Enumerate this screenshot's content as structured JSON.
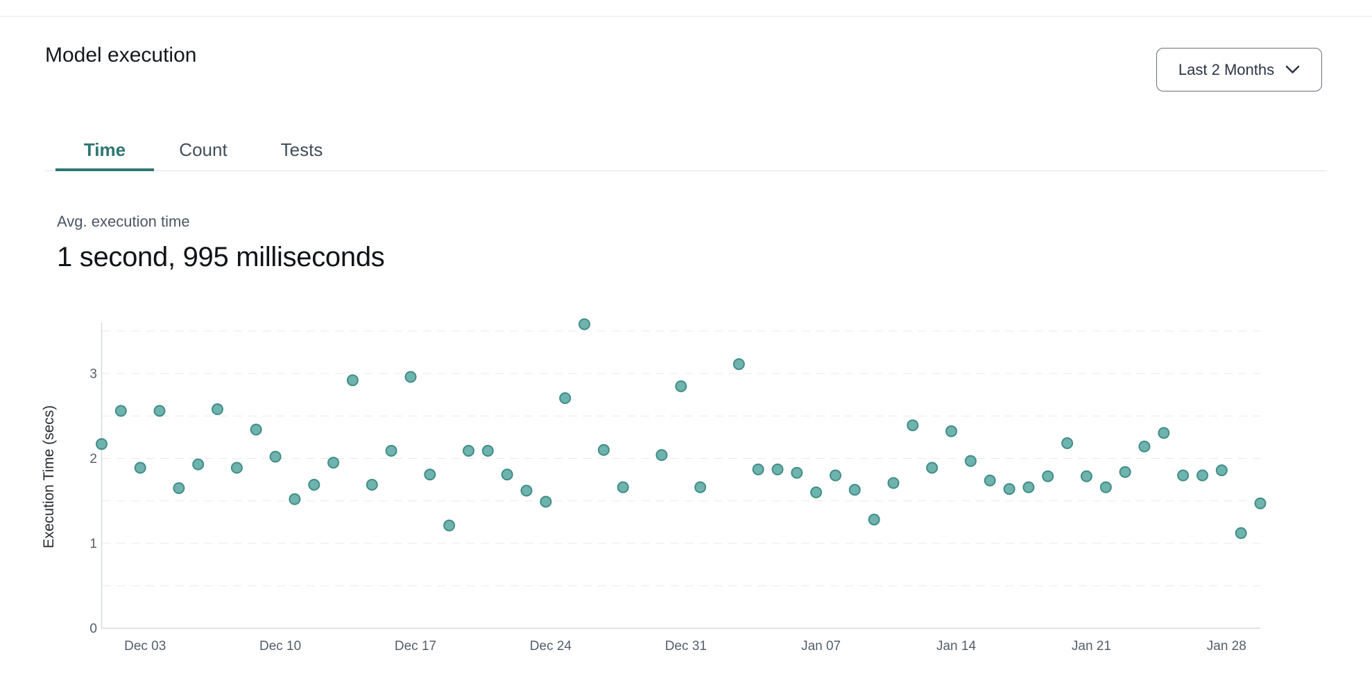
{
  "colors": {
    "accent": "#2d7672",
    "marker": "#6fb3ae",
    "marker_stroke": "#408d87",
    "grid": "#e7e8eb"
  },
  "header": {
    "title": "Model execution",
    "range_selector": {
      "value": "Last 2 Months",
      "icon": "chevron-down"
    }
  },
  "tabs": [
    {
      "label": "Time",
      "active": true
    },
    {
      "label": "Count",
      "active": false
    },
    {
      "label": "Tests",
      "active": false
    }
  ],
  "summary": {
    "label": "Avg. execution time",
    "value": "1 second, 995 milliseconds"
  },
  "chart_data": {
    "type": "scatter",
    "title": "",
    "xlabel": "",
    "ylabel": "Execution Time (secs)",
    "ylim": [
      0,
      3.7
    ],
    "y_ticks": [
      0,
      1,
      2,
      3
    ],
    "x_ticks": [
      "Dec 03",
      "Dec 10",
      "Dec 17",
      "Dec 24",
      "Dec 31",
      "Jan 07",
      "Jan 14",
      "Jan 21",
      "Jan 28"
    ],
    "grid": "horizontal dashed every 0.5",
    "legend": "none",
    "points": [
      {
        "date": "Dec 01",
        "value": 2.17
      },
      {
        "date": "Dec 02",
        "value": 2.56
      },
      {
        "date": "Dec 03",
        "value": 1.89
      },
      {
        "date": "Dec 04",
        "value": 2.56
      },
      {
        "date": "Dec 05",
        "value": 1.65
      },
      {
        "date": "Dec 06",
        "value": 1.93
      },
      {
        "date": "Dec 07",
        "value": 2.58
      },
      {
        "date": "Dec 08",
        "value": 1.89
      },
      {
        "date": "Dec 09",
        "value": 2.34
      },
      {
        "date": "Dec 10",
        "value": 2.02
      },
      {
        "date": "Dec 11",
        "value": 1.52
      },
      {
        "date": "Dec 12",
        "value": 1.69
      },
      {
        "date": "Dec 13",
        "value": 1.95
      },
      {
        "date": "Dec 14",
        "value": 2.92
      },
      {
        "date": "Dec 15",
        "value": 1.69
      },
      {
        "date": "Dec 16",
        "value": 2.09
      },
      {
        "date": "Dec 17",
        "value": 2.96
      },
      {
        "date": "Dec 18",
        "value": 1.81
      },
      {
        "date": "Dec 19",
        "value": 1.21
      },
      {
        "date": "Dec 20",
        "value": 2.09
      },
      {
        "date": "Dec 21",
        "value": 2.09
      },
      {
        "date": "Dec 22",
        "value": 1.81
      },
      {
        "date": "Dec 23",
        "value": 1.62
      },
      {
        "date": "Dec 24",
        "value": 1.49
      },
      {
        "date": "Dec 25",
        "value": 2.71
      },
      {
        "date": "Dec 26",
        "value": 3.58
      },
      {
        "date": "Dec 27",
        "value": 2.1
      },
      {
        "date": "Dec 28",
        "value": 1.66
      },
      {
        "date": "Dec 30",
        "value": 2.04
      },
      {
        "date": "Dec 31",
        "value": 2.85
      },
      {
        "date": "Jan 01",
        "value": 1.66
      },
      {
        "date": "Jan 03",
        "value": 3.11
      },
      {
        "date": "Jan 04",
        "value": 1.87
      },
      {
        "date": "Jan 05",
        "value": 1.87
      },
      {
        "date": "Jan 06",
        "value": 1.83
      },
      {
        "date": "Jan 07",
        "value": 1.6
      },
      {
        "date": "Jan 08",
        "value": 1.8
      },
      {
        "date": "Jan 09",
        "value": 1.63
      },
      {
        "date": "Jan 10",
        "value": 1.28
      },
      {
        "date": "Jan 11",
        "value": 1.71
      },
      {
        "date": "Jan 12",
        "value": 2.39
      },
      {
        "date": "Jan 13",
        "value": 1.89
      },
      {
        "date": "Jan 14",
        "value": 2.32
      },
      {
        "date": "Jan 15",
        "value": 1.97
      },
      {
        "date": "Jan 16",
        "value": 1.74
      },
      {
        "date": "Jan 17",
        "value": 1.64
      },
      {
        "date": "Jan 18",
        "value": 1.66
      },
      {
        "date": "Jan 19",
        "value": 1.79
      },
      {
        "date": "Jan 20",
        "value": 2.18
      },
      {
        "date": "Jan 21",
        "value": 1.79
      },
      {
        "date": "Jan 22",
        "value": 1.66
      },
      {
        "date": "Jan 23",
        "value": 1.84
      },
      {
        "date": "Jan 24",
        "value": 2.14
      },
      {
        "date": "Jan 25",
        "value": 2.3
      },
      {
        "date": "Jan 26",
        "value": 1.8
      },
      {
        "date": "Jan 27",
        "value": 1.8
      },
      {
        "date": "Jan 28",
        "value": 1.86
      },
      {
        "date": "Jan 29",
        "value": 1.12
      },
      {
        "date": "Jan 30",
        "value": 1.47
      }
    ]
  }
}
